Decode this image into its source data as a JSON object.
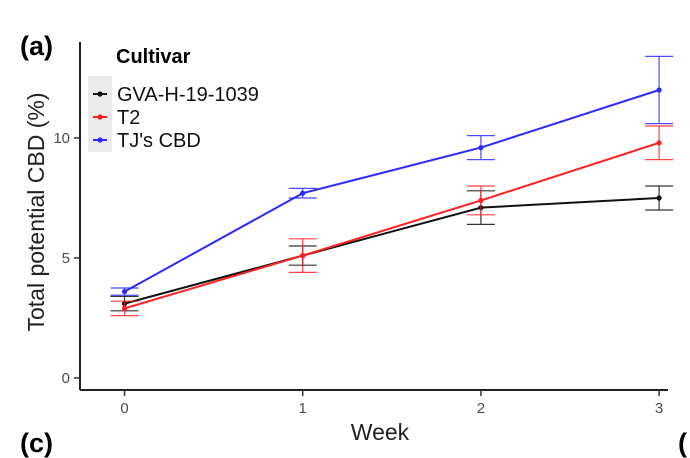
{
  "chart_data": {
    "type": "line",
    "panel_label": "(a)",
    "bottom_panel_labels": [
      "(c)",
      "("
    ],
    "xlabel": "Week",
    "ylabel": "Total potential CBD (%)",
    "x": [
      0,
      1,
      2,
      3
    ],
    "x_ticks": [
      "0",
      "1",
      "2",
      "3"
    ],
    "y_ticks": [
      "0",
      "5",
      "10"
    ],
    "y_tick_values": [
      0,
      5,
      10
    ],
    "xlim": [
      -0.25,
      3.05
    ],
    "ylim": [
      -0.5,
      14
    ],
    "legend": {
      "title": "Cultivar",
      "position": "top-left"
    },
    "series": [
      {
        "name": "GVA-H-19-1039",
        "color": "#111111",
        "values": [
          3.1,
          5.1,
          7.1,
          7.5
        ],
        "err": [
          0.3,
          0.4,
          0.7,
          0.5
        ]
      },
      {
        "name": "T2",
        "color": "#ff2020",
        "values": [
          2.9,
          5.1,
          7.4,
          9.8
        ],
        "err": [
          0.3,
          0.7,
          0.6,
          0.7
        ]
      },
      {
        "name": "TJ's CBD",
        "color": "#2a2aff",
        "values": [
          3.6,
          7.7,
          9.6,
          12.0
        ],
        "err": [
          0.15,
          0.2,
          0.5,
          1.4
        ]
      }
    ]
  }
}
